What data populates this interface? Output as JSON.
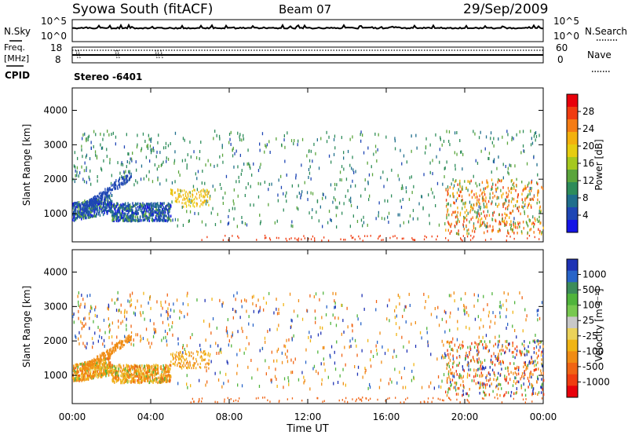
{
  "header": {
    "title": "Syowa South (fitACF)",
    "beam": "Beam 07",
    "date": "29/Sep/2009"
  },
  "left_labels": {
    "nsky": "N.Sky",
    "freq": "Freq.",
    "mhz": "[MHz]",
    "cpid": "CPID"
  },
  "right_labels": {
    "nsearch": "N.Search",
    "nave": "Nave"
  },
  "noise_panel": {
    "y_top_tick": "10^5",
    "y_bottom_tick": "10^0",
    "right_top_tick": "10^5",
    "right_bottom_tick": "10^0"
  },
  "freq_panel": {
    "left_ticks": [
      "18",
      "8"
    ],
    "right_ticks": [
      "60",
      "0"
    ]
  },
  "cpid_text": "Stereo -6401",
  "x_axis": {
    "label": "Time UT",
    "ticks": [
      "00:00",
      "04:00",
      "08:00",
      "12:00",
      "16:00",
      "20:00",
      "00:00"
    ]
  },
  "chart_data": [
    {
      "type": "heatmap",
      "name": "power",
      "ylabel": "Slant Range [km]",
      "ylim": [
        180,
        4650
      ],
      "yticks": [
        1000,
        2000,
        3000,
        4000
      ],
      "xlim": [
        0,
        24
      ],
      "colorbar_label": "Power [dB]",
      "colorbar_ticks": [
        "28",
        "24",
        "20",
        "16",
        "12",
        "8",
        "4"
      ],
      "colorbar_colors": [
        "#e8000b",
        "#f03c10",
        "#f57c14",
        "#f3b10d",
        "#e6cd10",
        "#a5c81e",
        "#5aa53c",
        "#2d8c5a",
        "#1f6e8c",
        "#1e46b4",
        "#1414e6"
      ]
    },
    {
      "type": "heatmap",
      "name": "velocity",
      "ylabel": "Slant Range [km]",
      "ylim": [
        180,
        4650
      ],
      "yticks": [
        1000,
        2000,
        3000,
        4000
      ],
      "xlim": [
        0,
        24
      ],
      "colorbar_label": "Velocity [m s⁻¹]",
      "colorbar_ticks": [
        "1000",
        "500",
        "100",
        "25",
        "-25",
        "-100",
        "-500",
        "-1000"
      ],
      "colorbar_colors": [
        "#1e32b4",
        "#2864c8",
        "#3c8c5a",
        "#50b43c",
        "#78c850",
        "#c8c8c8",
        "#ebd25a",
        "#f0b414",
        "#f08c14",
        "#f06414",
        "#f03c10",
        "#e8000b"
      ]
    }
  ]
}
